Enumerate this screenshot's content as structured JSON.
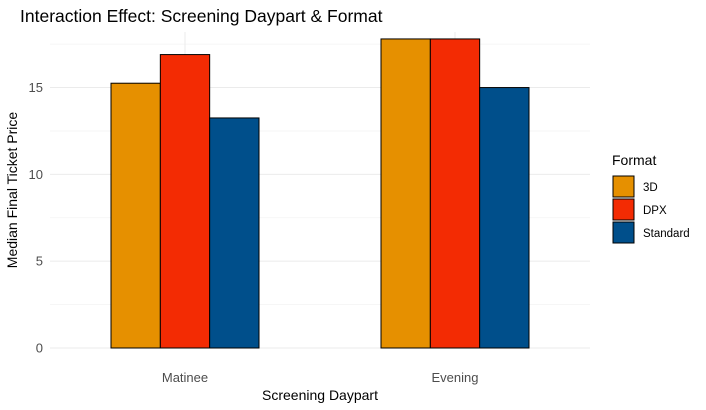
{
  "chart_data": {
    "type": "bar",
    "title": "Interaction Effect: Screening Daypart & Format",
    "xlabel": "Screening Daypart",
    "ylabel": "Median Final Ticket Price",
    "categories": [
      "Matinee",
      "Evening"
    ],
    "series": [
      {
        "name": "3D",
        "color": "#E69000",
        "values": [
          15.25,
          17.8
        ]
      },
      {
        "name": "DPX",
        "color": "#F32B03",
        "values": [
          16.9,
          17.8
        ]
      },
      {
        "name": "Standard",
        "color": "#004F8B",
        "values": [
          13.25,
          15.0
        ]
      }
    ],
    "ylim": [
      0,
      18.2
    ],
    "yticks": [
      0,
      5,
      10,
      15
    ],
    "grid": true,
    "legend": {
      "title": "Format",
      "position": "right"
    }
  }
}
